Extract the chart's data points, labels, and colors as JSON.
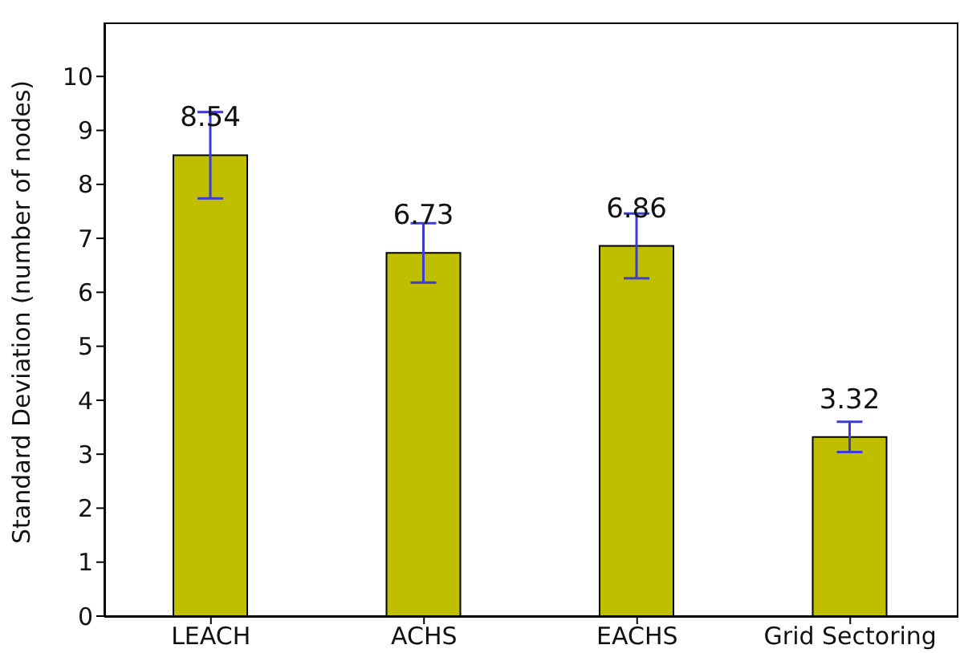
{
  "chart_data": {
    "type": "bar",
    "ylabel": "Standard Deviation (number of nodes)",
    "categories": [
      "LEACH",
      "ACHS",
      "EACHS",
      "Grid Sectoring"
    ],
    "values": [
      8.54,
      6.73,
      6.86,
      3.32
    ],
    "errors": [
      0.8,
      0.55,
      0.6,
      0.28
    ],
    "color": "#bfbf00",
    "ylim": [
      0,
      11
    ],
    "yticks": [
      0,
      1,
      2,
      3,
      4,
      5,
      6,
      7,
      8,
      9,
      10
    ],
    "grid": false,
    "data_labels": true
  }
}
